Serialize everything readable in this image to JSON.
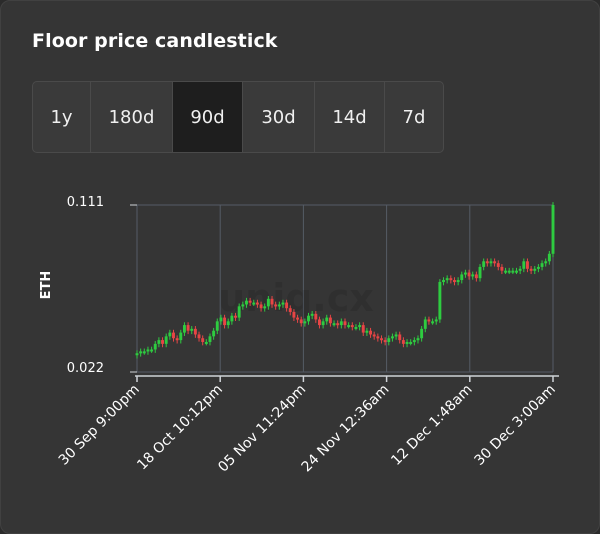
{
  "widget": {
    "title": "Floor price candlestick"
  },
  "range_selector": {
    "options": [
      "1y",
      "180d",
      "90d",
      "30d",
      "14d",
      "7d"
    ],
    "selected": "90d"
  },
  "watermark": "uniq.cx",
  "colors": {
    "up": "#2ecc40",
    "down": "#e84545",
    "grid": "#555c66",
    "axis": "#cfd3d8"
  },
  "chart_data": {
    "type": "candlestick",
    "ylabel": "ETH",
    "xlabel": "",
    "ylim": [
      0.022,
      0.111
    ],
    "y_tick_labels": [
      "0.111",
      "0.022"
    ],
    "x_tick_labels": [
      "30 Sep 9:00pm",
      "18 Oct 10:12pm",
      "05 Nov 11:24pm",
      "24 Nov 12:36am",
      "12 Dec 1:48am",
      "30 Dec 3:00am"
    ],
    "grid": true,
    "closes": [
      0.032,
      0.033,
      0.033,
      0.034,
      0.034,
      0.037,
      0.039,
      0.037,
      0.041,
      0.043,
      0.04,
      0.039,
      0.043,
      0.047,
      0.044,
      0.045,
      0.042,
      0.04,
      0.038,
      0.038,
      0.041,
      0.044,
      0.049,
      0.051,
      0.047,
      0.049,
      0.052,
      0.051,
      0.057,
      0.058,
      0.06,
      0.059,
      0.059,
      0.058,
      0.056,
      0.057,
      0.061,
      0.058,
      0.057,
      0.058,
      0.059,
      0.056,
      0.054,
      0.051,
      0.05,
      0.048,
      0.049,
      0.052,
      0.053,
      0.05,
      0.047,
      0.049,
      0.051,
      0.048,
      0.048,
      0.047,
      0.049,
      0.047,
      0.047,
      0.046,
      0.046,
      0.047,
      0.043,
      0.044,
      0.042,
      0.041,
      0.04,
      0.039,
      0.038,
      0.04,
      0.041,
      0.042,
      0.039,
      0.037,
      0.038,
      0.038,
      0.039,
      0.04,
      0.045,
      0.05,
      0.049,
      0.049,
      0.05,
      0.07,
      0.071,
      0.072,
      0.071,
      0.07,
      0.071,
      0.074,
      0.075,
      0.073,
      0.074,
      0.072,
      0.078,
      0.081,
      0.08,
      0.081,
      0.08,
      0.078,
      0.076,
      0.076,
      0.076,
      0.076,
      0.076,
      0.077,
      0.081,
      0.077,
      0.076,
      0.077,
      0.078,
      0.08,
      0.081,
      0.085,
      0.111
    ]
  }
}
